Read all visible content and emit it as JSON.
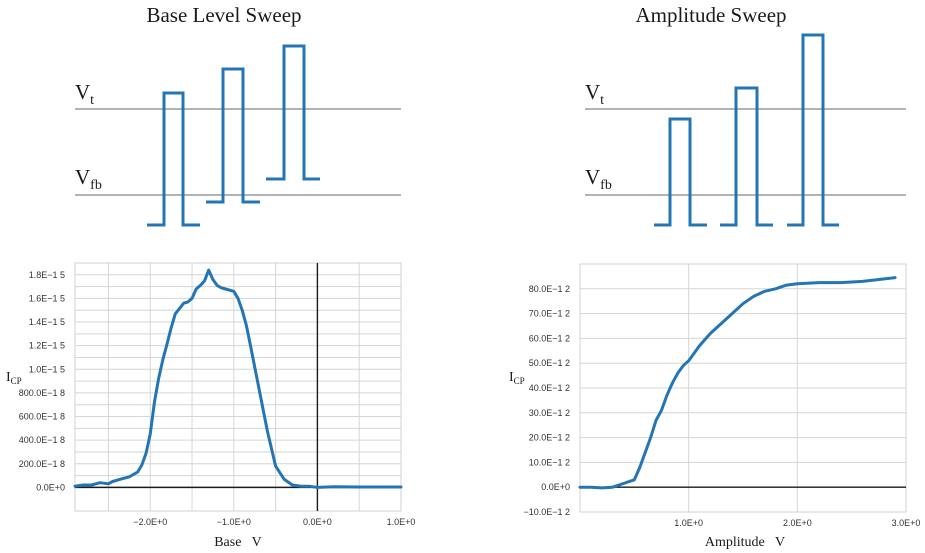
{
  "diagrams": [
    {
      "title": "Base Level Sweep",
      "vt_label": "V",
      "vt_sub": "t",
      "vfb_label": "V",
      "vfb_sub": "fb"
    },
    {
      "title": "Amplitude Sweep",
      "vt_label": "V",
      "vt_sub": "t",
      "vfb_label": "V",
      "vfb_sub": "fb"
    }
  ],
  "chart_data": [
    {
      "type": "line",
      "title": "",
      "xlabel": "Base   V",
      "ylabel": "I",
      "ylabel_sub": "CP",
      "xlim": [
        -2.9,
        1.0
      ],
      "ylim": [
        -2e-16,
        1.9e-15
      ],
      "x_ticks": [
        {
          "v": -2.0,
          "label": "−2.0E+0"
        },
        {
          "v": -1.0,
          "label": "−1.0E+0"
        },
        {
          "v": 0.0,
          "label": "0.0E+0"
        },
        {
          "v": 1.0,
          "label": "1.0E+0"
        }
      ],
      "y_ticks": [
        {
          "v": 0,
          "label": "0.0E+0"
        },
        {
          "v": 2e-16,
          "label": "200.0E−1 8"
        },
        {
          "v": 4e-16,
          "label": "400.0E−1 8"
        },
        {
          "v": 6e-16,
          "label": "600.0E−1 8"
        },
        {
          "v": 8e-16,
          "label": "800.0E−1 8"
        },
        {
          "v": 1e-15,
          "label": "1.0E−1 5"
        },
        {
          "v": 1.2e-15,
          "label": "1.2E−1 5"
        },
        {
          "v": 1.4e-15,
          "label": "1.4E−1 5"
        },
        {
          "v": 1.6e-15,
          "label": "1.6E−1 5"
        },
        {
          "v": 1.8e-15,
          "label": "1.8E−1 5"
        }
      ],
      "x_gridlines": [
        -2.5,
        -2.0,
        -1.5,
        -1.0,
        -0.5,
        0.5
      ],
      "y_gridlines": [
        1e-16,
        2e-16,
        3e-16,
        4e-16,
        5e-16,
        6e-16,
        7e-16,
        8e-16,
        9e-16,
        1e-15,
        1.1e-15,
        1.2e-15,
        1.3e-15,
        1.4e-15,
        1.5e-15,
        1.6e-15,
        1.7e-15,
        1.8e-15,
        1.9e-15
      ],
      "zero_x": 0.0,
      "zero_y": 0.0,
      "series": [
        {
          "x": [
            -2.9,
            -2.8,
            -2.7,
            -2.6,
            -2.5,
            -2.45,
            -2.35,
            -2.25,
            -2.15,
            -2.1,
            -2.05,
            -2.0,
            -1.95,
            -1.9,
            -1.85,
            -1.8,
            -1.75,
            -1.7,
            -1.6,
            -1.55,
            -1.5,
            -1.45,
            -1.4,
            -1.35,
            -1.3,
            -1.25,
            -1.2,
            -1.15,
            -1.1,
            -1.0,
            -0.95,
            -0.9,
            -0.85,
            -0.8,
            -0.75,
            -0.7,
            -0.6,
            -0.5,
            -0.4,
            -0.3,
            -0.2,
            -0.1,
            -0.05,
            0.0,
            0.2,
            0.5,
            0.8,
            1.0
          ],
          "y": [
            1e-17,
            2e-17,
            2e-17,
            4e-17,
            3e-17,
            5e-17,
            7e-17,
            9e-17,
            1.3e-16,
            1.9e-16,
            2.9e-16,
            4.5e-16,
            7.2e-16,
            9.2e-16,
            1.08e-15,
            1.21e-15,
            1.35e-15,
            1.47e-15,
            1.56e-15,
            1.57e-15,
            1.6e-15,
            1.68e-15,
            1.71e-15,
            1.75e-15,
            1.84e-15,
            1.76e-15,
            1.71e-15,
            1.69e-15,
            1.68e-15,
            1.66e-15,
            1.6e-15,
            1.5e-15,
            1.37e-15,
            1.2e-15,
            1.02e-15,
            8.4e-16,
            4.8e-16,
            1.8e-16,
            7e-17,
            2e-17,
            1e-17,
            1e-17,
            5e-18,
            0.0,
            5e-18,
            3e-18,
            3e-18,
            3e-18
          ]
        }
      ]
    },
    {
      "type": "line",
      "title": "",
      "xlabel": "Amplitude   V",
      "ylabel": "I",
      "ylabel_sub": "CP",
      "xlim": [
        0.0,
        3.0
      ],
      "ylim": [
        -1e-11,
        9e-11
      ],
      "x_ticks": [
        {
          "v": 1.0,
          "label": "1.0E+0"
        },
        {
          "v": 2.0,
          "label": "2.0E+0"
        },
        {
          "v": 3.0,
          "label": "3.0E+0"
        }
      ],
      "y_ticks": [
        {
          "v": -1e-11,
          "label": "−10.0E−1 2"
        },
        {
          "v": 0,
          "label": "0.0E+0"
        },
        {
          "v": 1e-11,
          "label": "10.0E−1 2"
        },
        {
          "v": 2e-11,
          "label": "20.0E−1 2"
        },
        {
          "v": 3e-11,
          "label": "30.0E−1 2"
        },
        {
          "v": 4e-11,
          "label": "40.0E−1 2"
        },
        {
          "v": 5e-11,
          "label": "50.0E−1 2"
        },
        {
          "v": 6e-11,
          "label": "60.0E−1 2"
        },
        {
          "v": 7e-11,
          "label": "70.0E−1 2"
        },
        {
          "v": 8e-11,
          "label": "80.0E−1 2"
        }
      ],
      "x_gridlines": [
        1.0,
        2.0
      ],
      "y_gridlines": [
        -1e-11,
        1e-11,
        2e-11,
        3e-11,
        4e-11,
        5e-11,
        6e-11,
        7e-11,
        8e-11,
        9e-11
      ],
      "zero_x": null,
      "zero_y": 0.0,
      "series": [
        {
          "x": [
            0.0,
            0.1,
            0.2,
            0.3,
            0.4,
            0.5,
            0.55,
            0.6,
            0.65,
            0.7,
            0.75,
            0.8,
            0.85,
            0.9,
            0.95,
            1.0,
            1.1,
            1.2,
            1.3,
            1.4,
            1.5,
            1.6,
            1.7,
            1.8,
            1.9,
            2.0,
            2.2,
            2.4,
            2.6,
            2.8,
            2.9
          ],
          "y": [
            0.0,
            0.0,
            -3e-13,
            0.0,
            1.5e-12,
            3e-12,
            8e-12,
            1.4e-11,
            2e-11,
            2.7e-11,
            3.1e-11,
            3.7e-11,
            4.2e-11,
            4.6e-11,
            4.9e-11,
            5.1e-11,
            5.7e-11,
            6.2e-11,
            6.6e-11,
            7e-11,
            7.4e-11,
            7.7e-11,
            7.9e-11,
            8e-11,
            8.15e-11,
            8.2e-11,
            8.25e-11,
            8.25e-11,
            8.3e-11,
            8.4e-11,
            8.45e-11
          ]
        }
      ]
    }
  ]
}
